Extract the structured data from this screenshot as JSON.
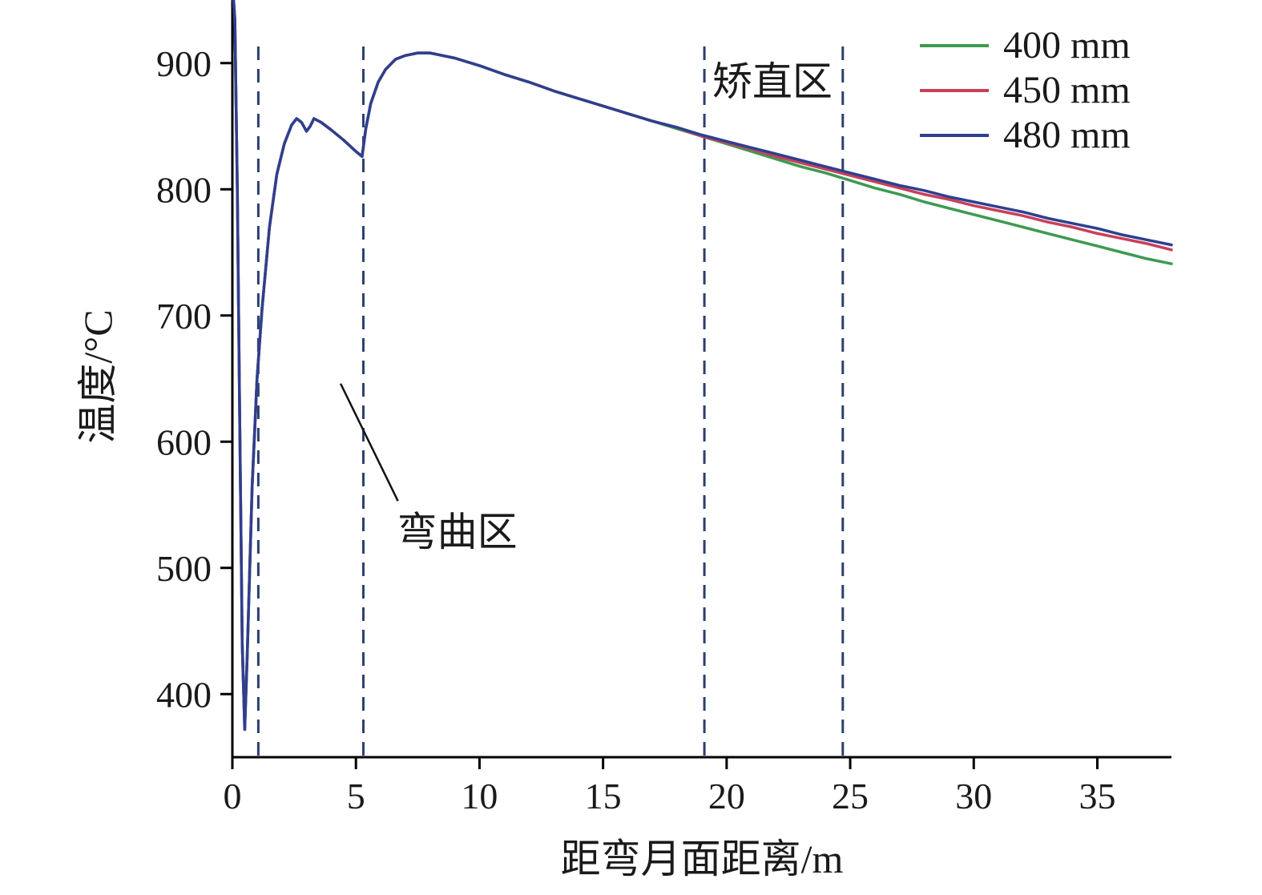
{
  "chart_data": {
    "type": "line",
    "title": "",
    "xlabel": "距弯月面距离/m",
    "ylabel": "温度/°C",
    "xlim": [
      0,
      38
    ],
    "ylim": [
      350,
      950
    ],
    "x_ticks": [
      0,
      5,
      10,
      15,
      20,
      25,
      30,
      35
    ],
    "y_ticks": [
      400,
      500,
      600,
      700,
      800,
      900
    ],
    "grid": false,
    "legend_position": "top-right",
    "vlines": {
      "x": [
        1.05,
        5.3,
        19.1,
        24.7
      ],
      "style": "dashed",
      "color": "#2c3f6e"
    },
    "annotations": [
      {
        "name": "straightening-zone",
        "text": "矫直区",
        "x": 21.85,
        "y": 888
      },
      {
        "name": "bending-zone",
        "text": "弯曲区",
        "x": 9.1,
        "y": 531,
        "leader": {
          "x1": 4.38,
          "y1": 646,
          "x2": 6.7,
          "y2": 553
        }
      }
    ],
    "x": [
      0.05,
      0.1,
      0.2,
      0.3,
      0.4,
      0.5,
      0.6,
      0.8,
      1.0,
      1.2,
      1.5,
      1.8,
      2.1,
      2.4,
      2.6,
      2.8,
      3.0,
      3.15,
      3.3,
      3.6,
      4.0,
      4.5,
      5.0,
      5.25,
      5.4,
      5.6,
      5.9,
      6.2,
      6.6,
      7.0,
      7.5,
      8.0,
      8.5,
      9.0,
      10,
      11,
      12,
      13,
      14,
      15,
      16,
      17,
      18,
      19,
      20,
      21,
      22,
      23,
      24,
      25,
      26,
      27,
      28,
      29,
      30,
      31,
      32,
      33,
      34,
      35,
      36,
      37,
      38
    ],
    "series": [
      {
        "name": "400 mm",
        "color": "#3d9a50",
        "y": [
          950,
          935,
          800,
          610,
          440,
          372,
          430,
          565,
          650,
          705,
          770,
          812,
          836,
          851,
          856,
          853,
          846,
          850,
          856,
          853,
          847,
          839,
          830,
          826,
          848,
          868,
          885,
          895,
          903,
          906,
          908,
          908,
          906,
          904,
          898,
          891,
          885,
          878,
          872,
          866,
          860,
          854,
          848,
          842,
          836,
          830,
          824,
          818,
          813,
          807,
          801,
          796,
          790,
          785,
          780,
          775,
          770,
          765,
          760,
          755,
          750,
          745,
          741
        ]
      },
      {
        "name": "450 mm",
        "color": "#c8405a",
        "y": [
          950,
          935,
          800,
          610,
          440,
          372,
          430,
          565,
          650,
          705,
          770,
          812,
          836,
          851,
          856,
          853,
          846,
          850,
          856,
          853,
          847,
          839,
          830,
          826,
          848,
          868,
          885,
          895,
          903,
          906,
          908,
          908,
          906,
          904,
          898,
          891,
          885,
          878,
          872,
          866,
          860,
          854,
          849,
          842,
          837,
          832,
          826,
          821,
          816,
          811,
          806,
          801,
          796,
          792,
          787,
          783,
          779,
          774,
          770,
          765,
          761,
          757,
          752
        ]
      },
      {
        "name": "480 mm",
        "color": "#2f3f8f",
        "y": [
          950,
          935,
          800,
          610,
          440,
          372,
          430,
          565,
          650,
          705,
          770,
          812,
          836,
          851,
          856,
          853,
          846,
          850,
          856,
          853,
          847,
          839,
          830,
          826,
          848,
          868,
          885,
          895,
          903,
          906,
          908,
          908,
          906,
          904,
          898,
          891,
          885,
          878,
          872,
          866,
          860,
          854,
          849,
          843,
          838,
          833,
          828,
          823,
          818,
          813,
          808,
          803,
          799,
          794,
          790,
          786,
          782,
          777,
          773,
          769,
          764,
          760,
          756
        ]
      }
    ]
  }
}
